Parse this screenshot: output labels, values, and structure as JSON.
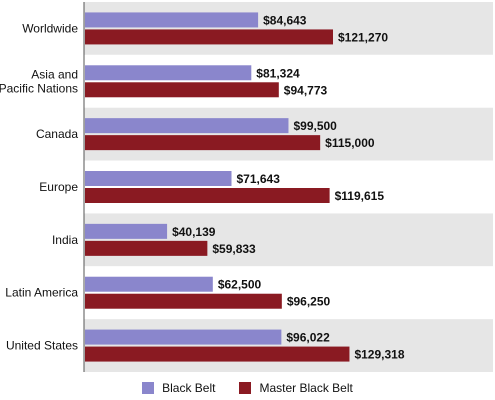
{
  "chart_data": {
    "type": "bar",
    "orientation": "horizontal",
    "categories": [
      "Worldwide",
      "Asia and Pacific Nations",
      "Canada",
      "Europe",
      "India",
      "Latin America",
      "United States"
    ],
    "category_lines": [
      [
        "Worldwide"
      ],
      [
        "Asia and",
        "Pacific Nations"
      ],
      [
        "Canada"
      ],
      [
        "Europe"
      ],
      [
        "India"
      ],
      [
        "Latin America"
      ],
      [
        "United States"
      ]
    ],
    "series": [
      {
        "name": "Black Belt",
        "color": "#8a86cc",
        "values": [
          84643,
          81324,
          99500,
          71643,
          40139,
          62500,
          96022
        ],
        "labels": [
          "$84,643",
          "$81,324",
          "$99,500",
          "$71,643",
          "$40,139",
          "$62,500",
          "$96,022"
        ]
      },
      {
        "name": "Master Black Belt",
        "color": "#8a1a22",
        "values": [
          121270,
          94773,
          115000,
          119615,
          59833,
          96250,
          129318
        ],
        "labels": [
          "$121,270",
          "$94,773",
          "$115,000",
          "$119,615",
          "$59,833",
          "$96,250",
          "$129,318"
        ]
      }
    ],
    "xlim": [
      0,
      200000
    ],
    "band_colors": [
      "#e6e6e6",
      "#ffffff"
    ],
    "legend_position": "bottom-center"
  }
}
